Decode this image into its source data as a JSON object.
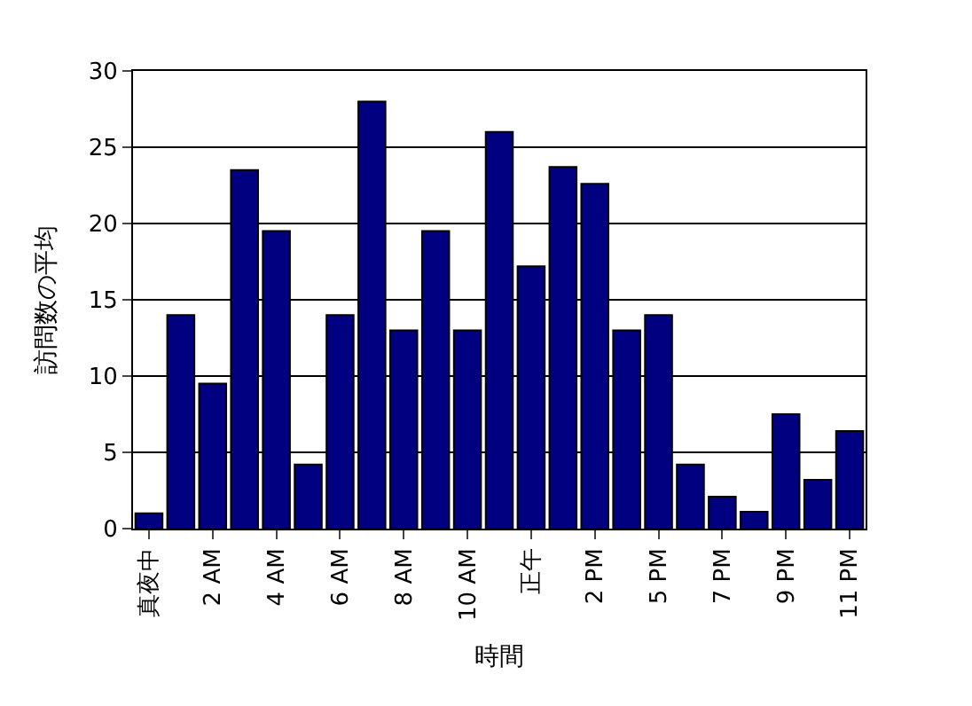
{
  "chart_data": {
    "type": "bar",
    "xlabel": "時間",
    "ylabel": "訪問数の平均",
    "categories": [
      "真夜中",
      null,
      "2 AM",
      null,
      "4 AM",
      null,
      "6 AM",
      null,
      "8 AM",
      null,
      "10 AM",
      null,
      "正午",
      null,
      "2 PM",
      null,
      "5 PM",
      null,
      "7 PM",
      null,
      "9 PM",
      null,
      "11 PM"
    ],
    "values": [
      1,
      14,
      9.5,
      23.5,
      19.5,
      4.2,
      14,
      28,
      13,
      19.5,
      13,
      26,
      17.2,
      23.7,
      22.6,
      13,
      14,
      4.2,
      2.1,
      1.1,
      7.5,
      3.2,
      6.4
    ],
    "color": "#000080",
    "ylim": [
      0,
      30
    ],
    "yticks": [
      0,
      5,
      10,
      15,
      20,
      25,
      30
    ],
    "grid": "y",
    "legend": false
  }
}
